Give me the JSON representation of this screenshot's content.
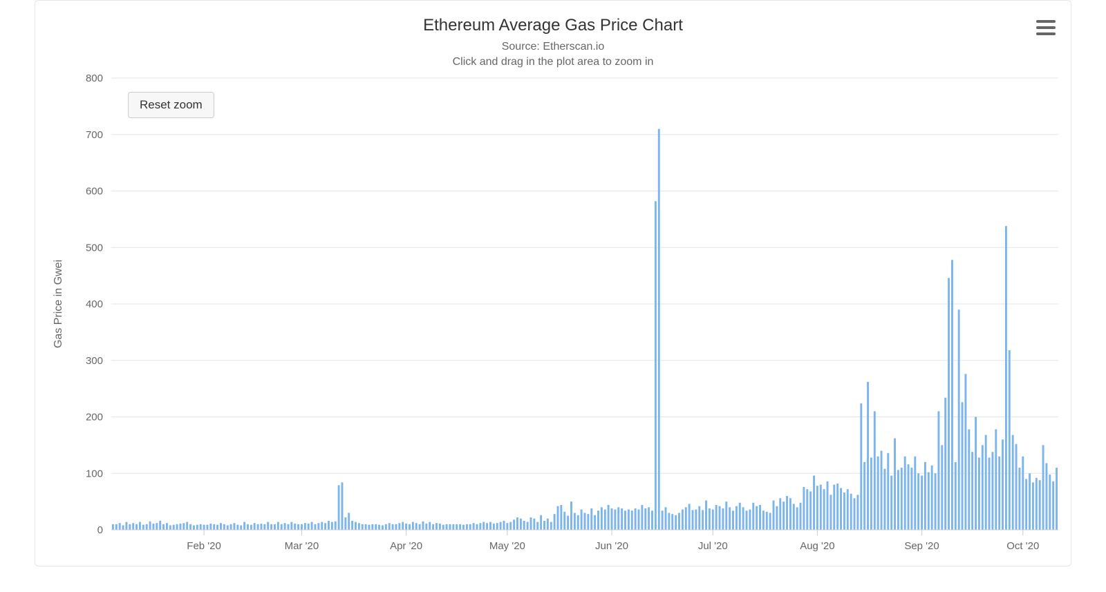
{
  "chart": {
    "type": "bar",
    "title": "Ethereum Average Gas Price Chart",
    "subtitle_line1": "Source: Etherscan.io",
    "subtitle_line2": "Click and drag in the plot area to zoom in",
    "reset_label": "Reset zoom",
    "ylabel": "Gas Price in Gwei",
    "y": {
      "min": 0,
      "max": 800,
      "tick_step": 100,
      "grid_color": "#e6e6e6",
      "label_color": "#666666",
      "label_fontsize": 15
    },
    "x": {
      "start_date": "2020-01-05",
      "days": 275,
      "month_ticks": [
        {
          "label": "Feb '20",
          "dayIndex": 27
        },
        {
          "label": "Mar '20",
          "dayIndex": 56
        },
        {
          "label": "Apr '20",
          "dayIndex": 87
        },
        {
          "label": "May '20",
          "dayIndex": 117
        },
        {
          "label": "Jun '20",
          "dayIndex": 148
        },
        {
          "label": "Jul '20",
          "dayIndex": 178
        },
        {
          "label": "Aug '20",
          "dayIndex": 209
        },
        {
          "label": "Sep '20",
          "dayIndex": 240
        },
        {
          "label": "Oct '20",
          "dayIndex": 270
        }
      ],
      "label_color": "#666666",
      "label_fontsize": 15
    },
    "bar_color": "#7cb5ec",
    "bar_width_ratio": 0.6,
    "background_color": "#ffffff",
    "border_color": "#e6e6e6",
    "values": [
      10,
      10,
      12,
      8,
      14,
      10,
      12,
      10,
      14,
      9,
      10,
      15,
      11,
      12,
      16,
      10,
      12,
      8,
      9,
      10,
      11,
      12,
      14,
      10,
      8,
      9,
      10,
      9,
      9,
      11,
      10,
      9,
      12,
      10,
      8,
      10,
      12,
      9,
      8,
      14,
      10,
      9,
      12,
      10,
      11,
      10,
      14,
      10,
      10,
      14,
      10,
      12,
      10,
      14,
      11,
      10,
      10,
      12,
      11,
      14,
      10,
      12,
      14,
      12,
      16,
      14,
      15,
      79,
      84,
      22,
      30,
      16,
      14,
      12,
      10,
      10,
      9,
      10,
      10,
      9,
      8,
      10,
      12,
      10,
      10,
      12,
      14,
      11,
      10,
      14,
      12,
      10,
      15,
      11,
      14,
      10,
      12,
      11,
      9,
      10,
      10,
      10,
      10,
      10,
      9,
      10,
      10,
      12,
      10,
      12,
      14,
      12,
      14,
      11,
      12,
      14,
      16,
      12,
      14,
      18,
      22,
      20,
      16,
      14,
      22,
      20,
      14,
      26,
      16,
      20,
      14,
      28,
      42,
      44,
      32,
      25,
      50,
      30,
      26,
      36,
      30,
      28,
      38,
      26,
      34,
      40,
      36,
      44,
      38,
      36,
      40,
      38,
      34,
      36,
      34,
      38,
      36,
      44,
      38,
      40,
      34,
      582,
      710,
      34,
      40,
      30,
      28,
      26,
      30,
      36,
      40,
      46,
      35,
      36,
      42,
      35,
      52,
      38,
      36,
      44,
      42,
      38,
      50,
      40,
      34,
      42,
      48,
      40,
      34,
      36,
      48,
      42,
      44,
      34,
      32,
      30,
      52,
      42,
      56,
      50,
      60,
      56,
      46,
      40,
      48,
      76,
      72,
      68,
      96,
      78,
      80,
      72,
      86,
      62,
      80,
      82,
      74,
      66,
      72,
      64,
      56,
      62,
      224,
      120,
      262,
      128,
      210,
      130,
      140,
      108,
      136,
      96,
      162,
      106,
      110,
      130,
      116,
      110,
      130,
      100,
      96,
      120,
      102,
      114,
      100,
      210,
      150,
      234,
      446,
      478,
      120,
      390,
      226,
      276,
      178,
      138,
      200,
      128,
      150,
      168,
      128,
      138,
      178,
      130,
      160,
      538,
      318,
      168,
      152,
      110,
      130,
      90,
      100,
      84,
      92,
      88,
      150,
      118,
      98,
      86,
      110
    ]
  },
  "menu": {
    "aria": "Chart context menu"
  }
}
